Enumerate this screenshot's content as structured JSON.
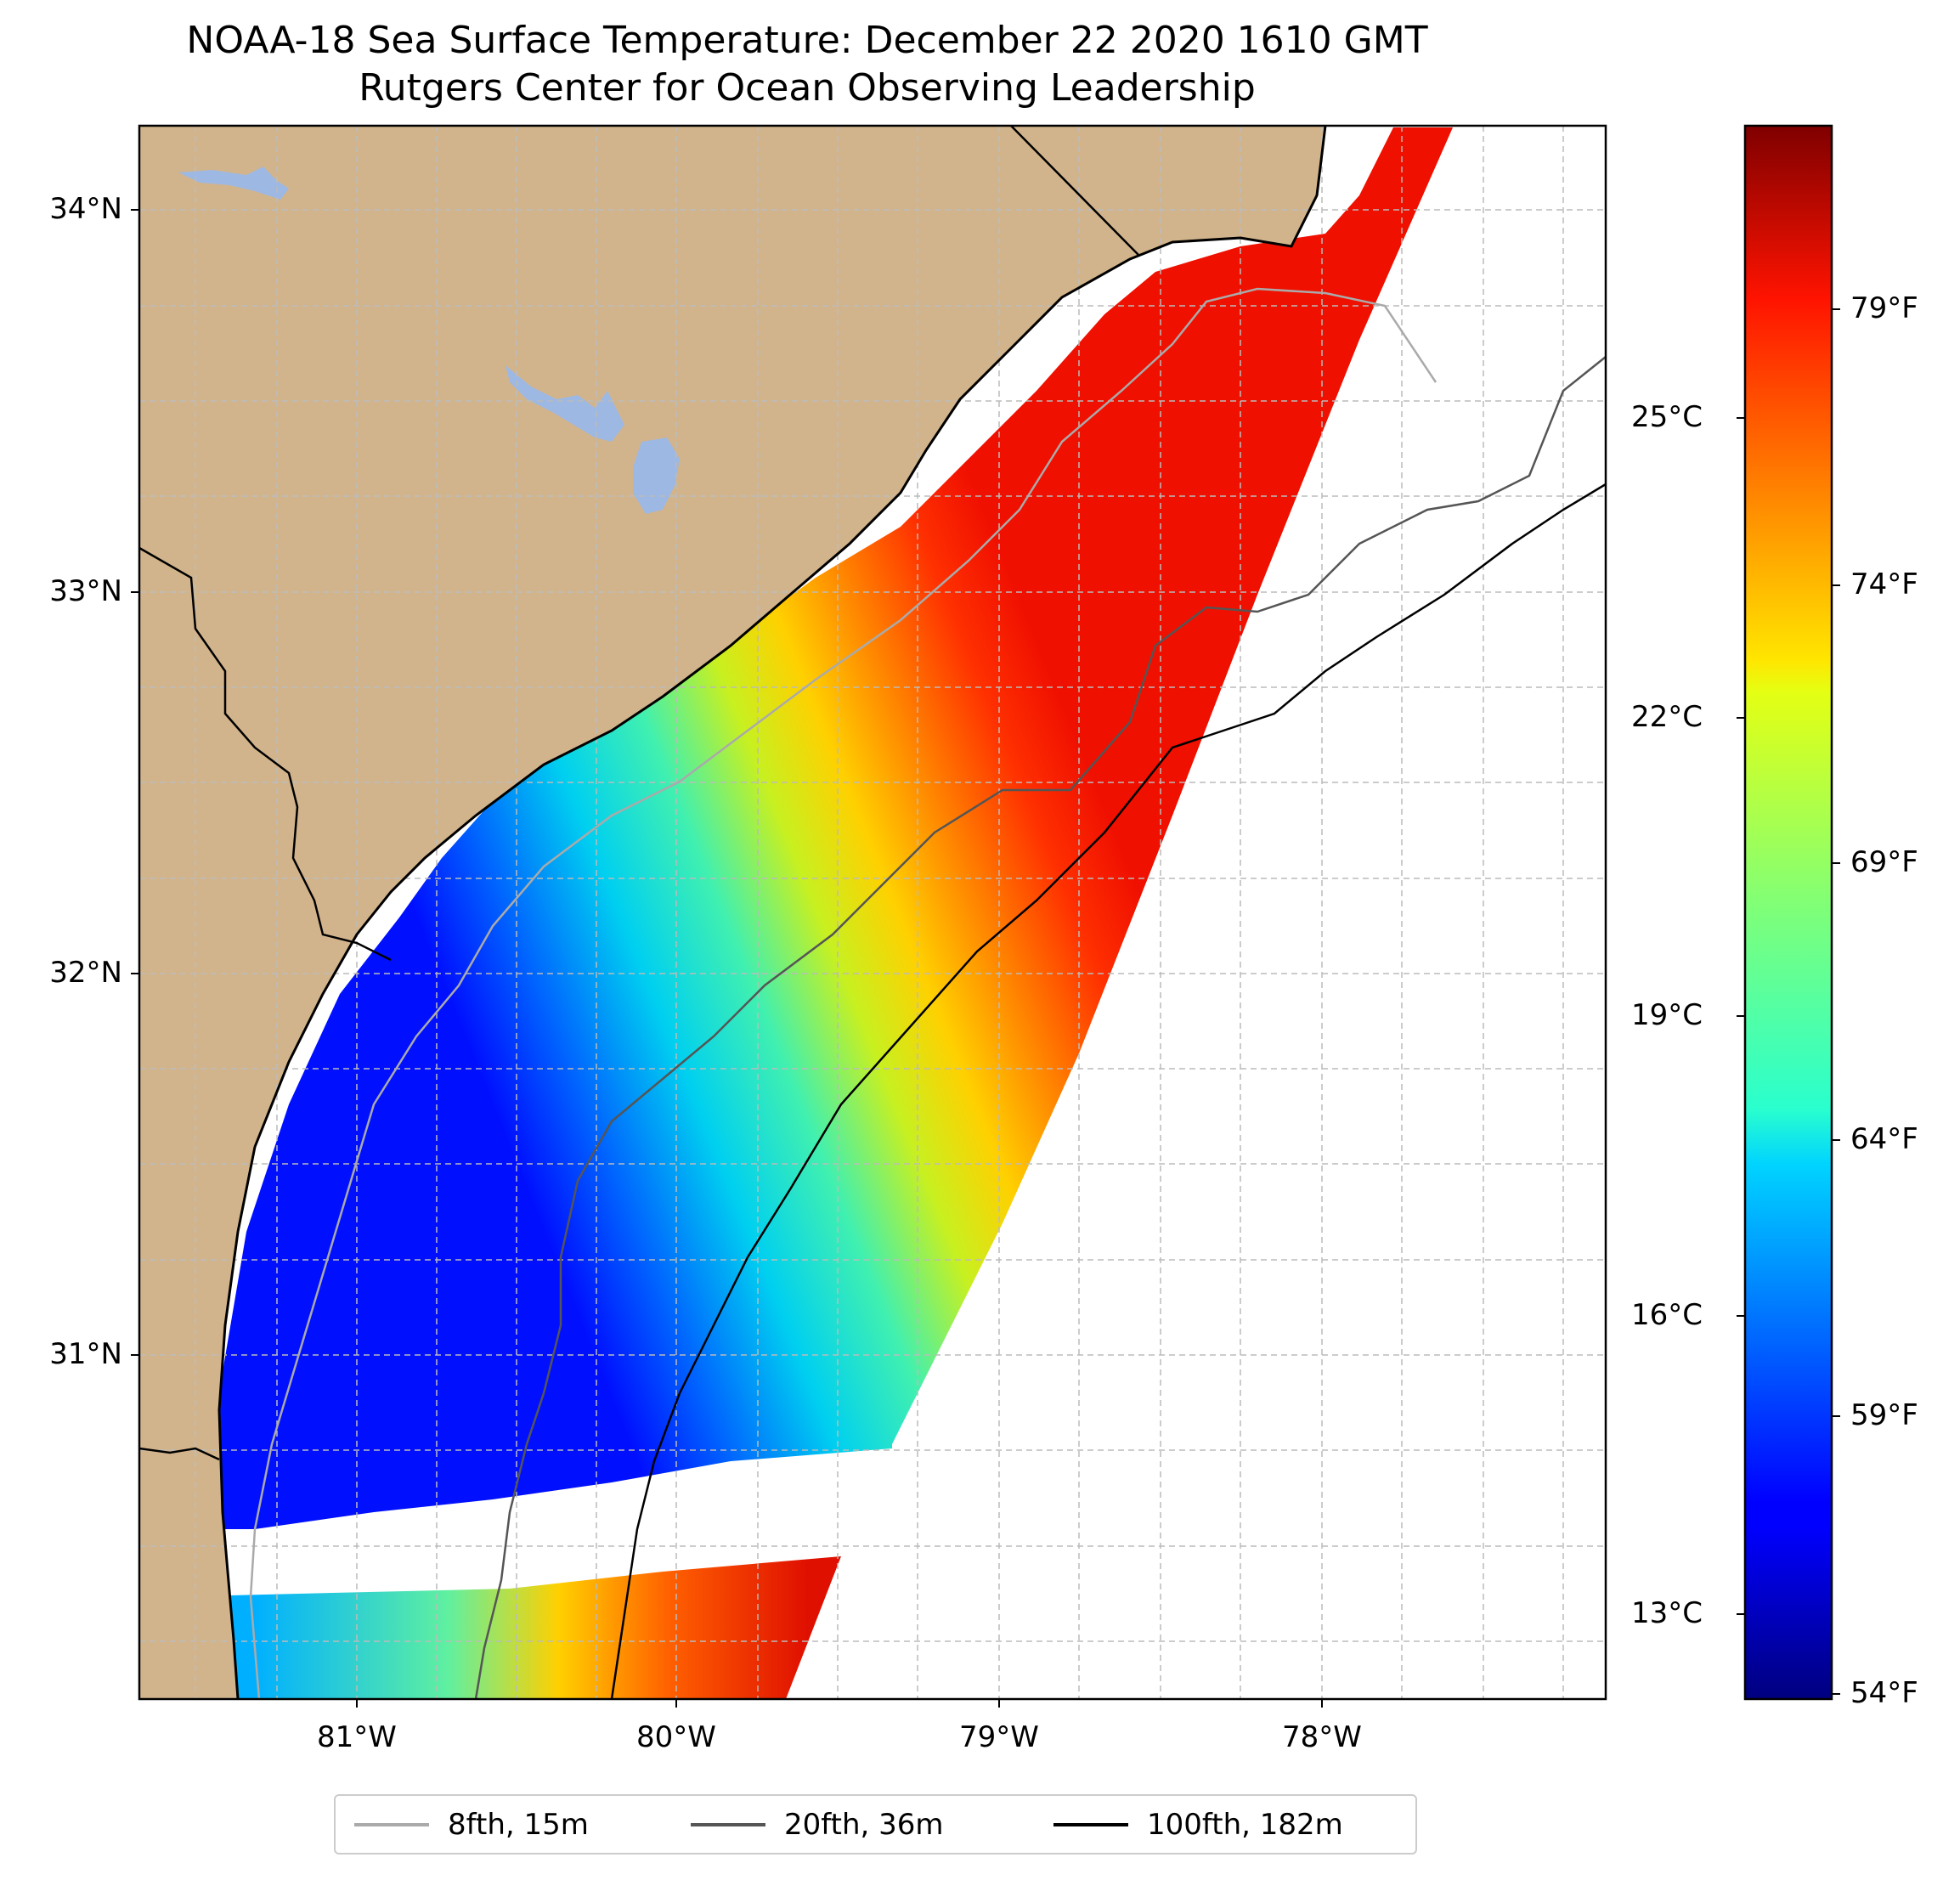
{
  "title": "NOAA-18 Sea Surface Temperature: December 22 2020 1610 GMT",
  "subtitle": "Rutgers Center for Ocean Observing Leadership",
  "map": {
    "extent_lon": [
      -81.68,
      -77.12
    ],
    "extent_lat": [
      30.08,
      34.22
    ],
    "land_color": "#D2B48C",
    "lake_color": "#9DB8E2",
    "gridlines": true,
    "lat_ticks": [
      "34°N",
      "33°N",
      "32°N",
      "31°N"
    ],
    "lon_ticks": [
      "81°W",
      "80°W",
      "79°W",
      "78°W"
    ]
  },
  "colorbar": {
    "colormap": "jet",
    "celsius_ticks": [
      "25°C",
      "22°C",
      "19°C",
      "16°C",
      "13°C"
    ],
    "fahrenheit_ticks": [
      "79°F",
      "74°F",
      "69°F",
      "64°F",
      "59°F",
      "54°F"
    ]
  },
  "legend": [
    {
      "label": "8fth, 15m",
      "color": "#aaaaaa"
    },
    {
      "label": "20fth, 36m",
      "color": "#555555"
    },
    {
      "label": "100fth, 182m",
      "color": "#000000"
    }
  ]
}
